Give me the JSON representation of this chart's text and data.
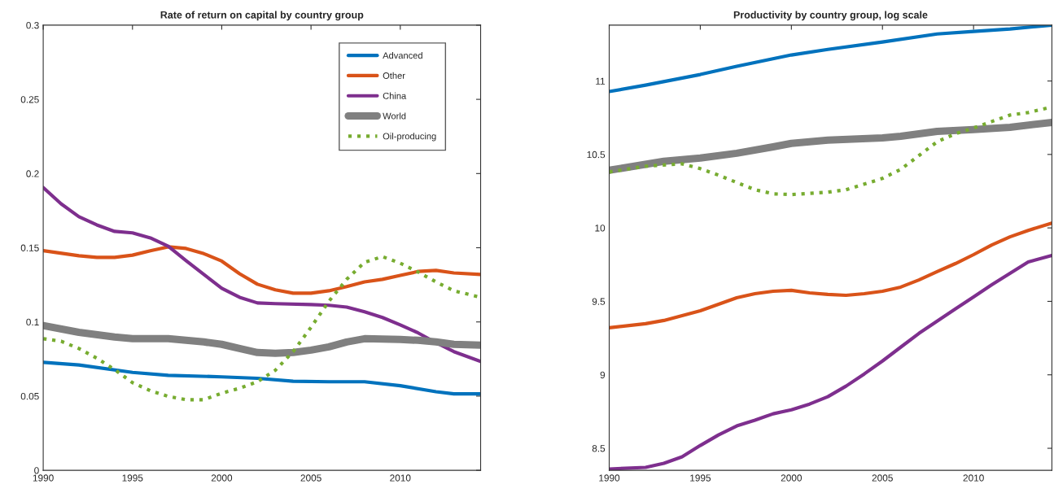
{
  "chart_data": [
    {
      "type": "line",
      "title": "Rate of return on capital by country group",
      "xlim": [
        1990,
        2014.5
      ],
      "ylim": [
        0,
        0.3
      ],
      "xticks": [
        1990,
        1995,
        2000,
        2005,
        2010
      ],
      "yticks": [
        0,
        0.05,
        0.1,
        0.15,
        0.2,
        0.25,
        0.3
      ],
      "grid": false,
      "legend": "top right",
      "marker": "none",
      "series": [
        {
          "name": "Advanced",
          "color": "#0072bd",
          "x": [
            1990,
            1992,
            1995,
            1997,
            2000,
            2002,
            2004,
            2006,
            2008,
            2010,
            2012,
            2013,
            2014.5
          ],
          "values": [
            0.0728,
            0.071,
            0.066,
            0.064,
            0.063,
            0.062,
            0.06,
            0.0597,
            0.0597,
            0.057,
            0.053,
            0.0515,
            0.0515
          ]
        },
        {
          "name": "Other",
          "color": "#d95319",
          "x": [
            1990,
            1992,
            1993,
            1994,
            1995,
            1996,
            1997,
            1998,
            1999,
            2000,
            2001,
            2002,
            2003,
            2004,
            2005,
            2006,
            2007,
            2008,
            2009,
            2010,
            2011,
            2012,
            2013,
            2014.5
          ],
          "values": [
            0.148,
            0.1446,
            0.1435,
            0.1435,
            0.145,
            0.148,
            0.1506,
            0.1495,
            0.146,
            0.141,
            0.1325,
            0.1254,
            0.1216,
            0.1194,
            0.1194,
            0.121,
            0.1238,
            0.127,
            0.1287,
            0.1314,
            0.134,
            0.1347,
            0.133,
            0.132
          ]
        },
        {
          "name": "China",
          "color": "#7e2f8e",
          "x": [
            1990,
            1991,
            1992,
            1993,
            1994,
            1995,
            1996,
            1997,
            1998,
            1999,
            2000,
            2001,
            2002,
            2003,
            2005,
            2006,
            2007,
            2008,
            2009,
            2010,
            2011,
            2012,
            2013,
            2014.5
          ],
          "values": [
            0.1906,
            0.1796,
            0.1709,
            0.1654,
            0.161,
            0.16,
            0.1566,
            0.151,
            0.1413,
            0.132,
            0.1227,
            0.1166,
            0.1128,
            0.1123,
            0.1117,
            0.1112,
            0.11,
            0.1068,
            0.103,
            0.098,
            0.0926,
            0.086,
            0.08,
            0.0734
          ]
        },
        {
          "name": "World",
          "color": "#808080",
          "x": [
            1990,
            1992,
            1994,
            1995,
            1997,
            1999,
            2000,
            2001,
            2002,
            2003,
            2004,
            2005,
            2006,
            2007,
            2008,
            2010,
            2011,
            2012,
            2013,
            2014.5
          ],
          "values": [
            0.0975,
            0.093,
            0.0898,
            0.0887,
            0.0887,
            0.0865,
            0.0849,
            0.0821,
            0.0794,
            0.0789,
            0.0794,
            0.081,
            0.0832,
            0.0865,
            0.0887,
            0.0882,
            0.0876,
            0.0865,
            0.0849,
            0.0843
          ]
        },
        {
          "name": "Oil-producing",
          "color": "#77ac30",
          "line_style": "dotted",
          "x": [
            1990,
            1991,
            1992,
            1993,
            1994,
            1995,
            1996,
            1997,
            1998,
            1999,
            2000,
            2001,
            2002,
            2003,
            2004,
            2005,
            2006,
            2007,
            2008,
            2009,
            2010,
            2011,
            2012,
            2013,
            2014.5
          ],
          "values": [
            0.0887,
            0.087,
            0.0821,
            0.0756,
            0.0679,
            0.0591,
            0.0537,
            0.0498,
            0.0476,
            0.0476,
            0.052,
            0.0553,
            0.0597,
            0.0674,
            0.08,
            0.0964,
            0.1139,
            0.1287,
            0.1402,
            0.144,
            0.1396,
            0.1336,
            0.127,
            0.121,
            0.1166
          ]
        }
      ]
    },
    {
      "type": "line",
      "title": "Productivity by country group, log scale",
      "xlim": [
        1990,
        2014.3
      ],
      "ylim": [
        8.35,
        11.38
      ],
      "xticks": [
        1990,
        1995,
        2000,
        2005,
        2010
      ],
      "yticks": [
        8.5,
        9,
        9.5,
        10,
        10.5,
        11
      ],
      "grid": false,
      "marker": "none",
      "series": [
        {
          "color": "#0072bd",
          "x": [
            1990,
            1992,
            1995,
            1997,
            2000,
            2002,
            2005,
            2008,
            2010,
            2012,
            2014.3
          ],
          "values": [
            10.928,
            10.972,
            11.044,
            11.1,
            11.177,
            11.215,
            11.265,
            11.32,
            11.337,
            11.354,
            11.38
          ]
        },
        {
          "color": "#d95319",
          "x": [
            1990,
            1992,
            1993,
            1995,
            1997,
            1998,
            1999,
            2000,
            2001,
            2002,
            2003,
            2004,
            2005,
            2006,
            2007,
            2008,
            2009,
            2010,
            2011,
            2012,
            2013,
            2014.3
          ],
          "values": [
            9.32,
            9.348,
            9.37,
            9.436,
            9.525,
            9.552,
            9.569,
            9.575,
            9.558,
            9.547,
            9.541,
            9.552,
            9.569,
            9.597,
            9.646,
            9.702,
            9.757,
            9.818,
            9.884,
            9.939,
            9.983,
            10.033
          ]
        },
        {
          "color": "#7e2f8e",
          "x": [
            1990,
            1992,
            1993,
            1994,
            1995,
            1996,
            1997,
            1998,
            1999,
            2000,
            2001,
            2002,
            2003,
            2004,
            2005,
            2006,
            2007,
            2008,
            2009,
            2010,
            2011,
            2012,
            2013,
            2014.3
          ],
          "values": [
            8.359,
            8.37,
            8.398,
            8.442,
            8.519,
            8.591,
            8.652,
            8.691,
            8.735,
            8.762,
            8.801,
            8.851,
            8.923,
            9.006,
            9.094,
            9.188,
            9.282,
            9.365,
            9.448,
            9.53,
            9.613,
            9.691,
            9.768,
            9.812
          ]
        },
        {
          "color": "#808080",
          "x": [
            1990,
            1993,
            1995,
            1997,
            1999,
            2000,
            2002,
            2005,
            2006,
            2008,
            2010,
            2012,
            2014.3
          ],
          "values": [
            10.392,
            10.453,
            10.475,
            10.508,
            10.552,
            10.575,
            10.597,
            10.613,
            10.624,
            10.657,
            10.669,
            10.685,
            10.718
          ]
        },
        {
          "color": "#77ac30",
          "line_style": "dotted",
          "x": [
            1990,
            1992,
            1994,
            1995,
            1996,
            1997,
            1998,
            1999,
            2000,
            2002,
            2003,
            2004,
            2005,
            2006,
            2007,
            2008,
            2009,
            2010,
            2011,
            2012,
            2013,
            2014.3
          ],
          "values": [
            10.381,
            10.42,
            10.436,
            10.403,
            10.359,
            10.309,
            10.26,
            10.232,
            10.227,
            10.243,
            10.26,
            10.298,
            10.337,
            10.398,
            10.492,
            10.586,
            10.641,
            10.68,
            10.724,
            10.768,
            10.785,
            10.823
          ]
        }
      ]
    }
  ]
}
